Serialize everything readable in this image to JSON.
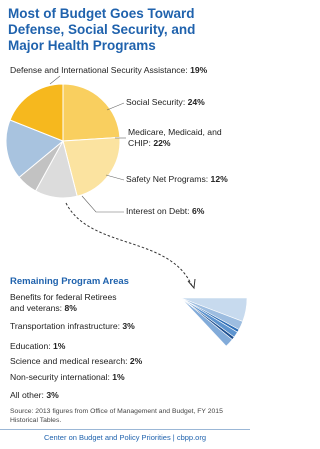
{
  "chart_data": [
    {
      "type": "pie",
      "title": "Most of Budget Goes Toward Defense, Social Security, and Major Health Programs",
      "categories": [
        "Social Security:",
        "Medicare, Medicaid, and CHIP:",
        "Safety Net Programs:",
        "Interest on Debt:",
        null,
        "Defense and International Security Assistance:"
      ],
      "values": [
        24,
        22,
        12,
        6,
        17,
        19
      ],
      "value_labels": [
        "24%",
        "22%",
        "12%",
        "6%",
        null,
        "19%"
      ],
      "colors": [
        "#f9cf5f",
        "#fbe3a0",
        "#dcdcdc",
        "#c2c2c2",
        "#a8c3df",
        "#f6b81e"
      ]
    },
    {
      "type": "fan",
      "title": "Remaining Program Areas",
      "categories": [
        "Benefits for federal Retirees and veterans:",
        "Transportation infrastructure:",
        "Education:",
        "Science and medical research:",
        "Non-security international:",
        "All other:"
      ],
      "values": [
        8,
        3,
        1,
        2,
        1,
        3
      ],
      "value_labels": [
        "8%",
        "3%",
        "1%",
        "2%",
        "1%",
        "3%"
      ],
      "colors": [
        "#c7daee",
        "#9dbde0",
        "#2d6db5",
        "#5d94cf",
        "#1f4f8f",
        "#82abd9"
      ]
    }
  ],
  "source": "Source: 2013 figures from Office of Management and Budget, FY 2015 Historical Tables.",
  "footer": "Center on Budget and Policy Priorities | cbpp.org"
}
